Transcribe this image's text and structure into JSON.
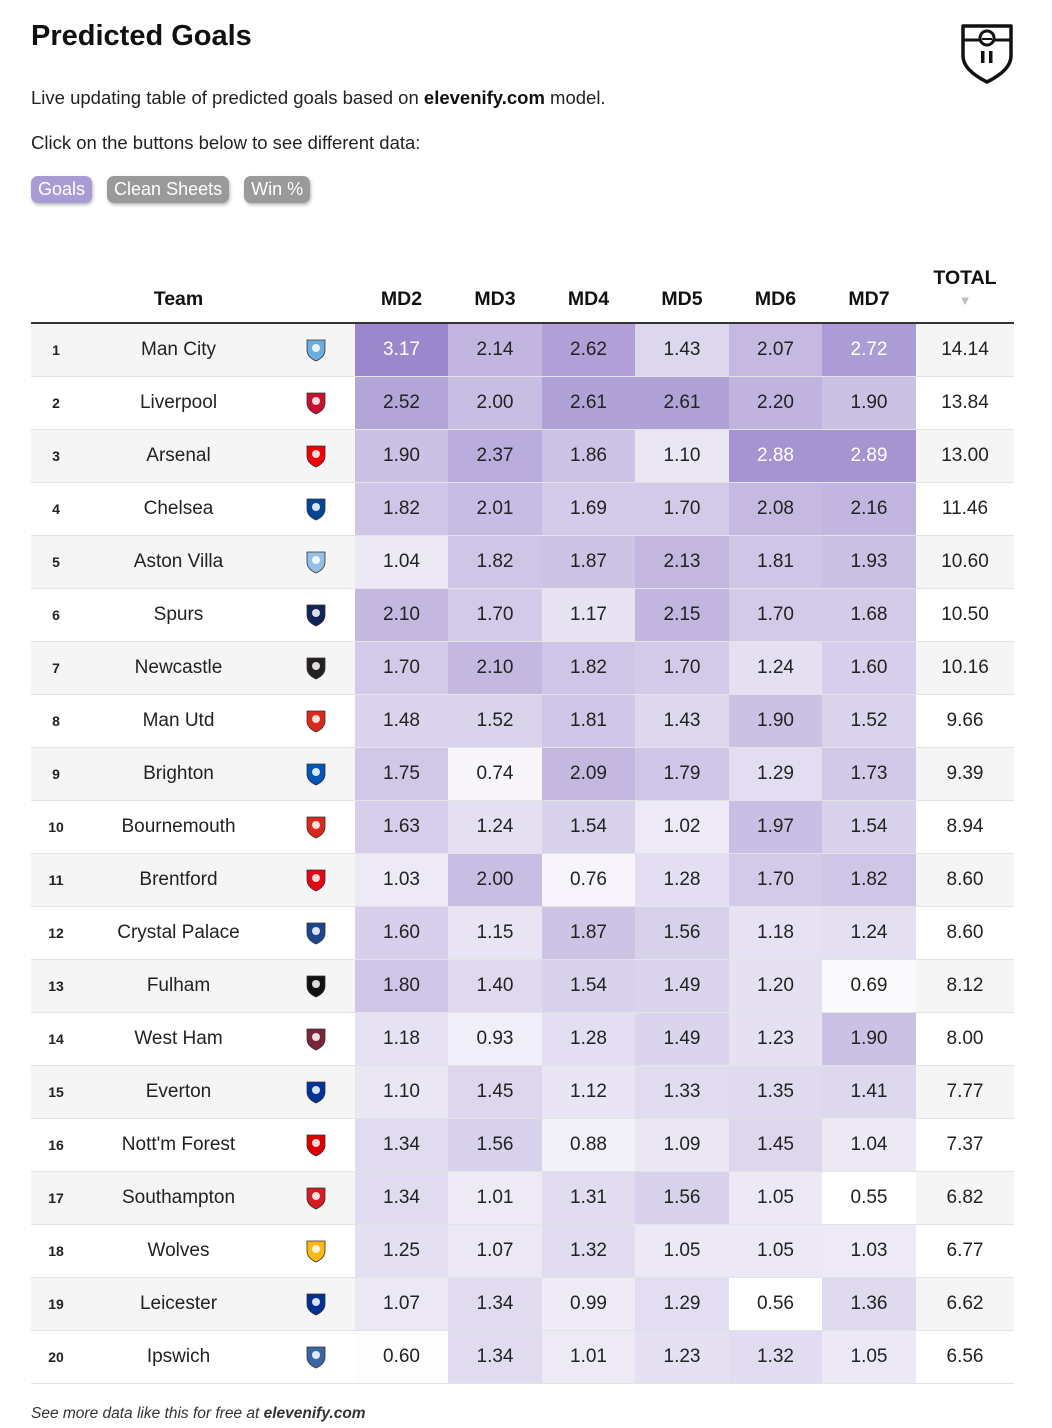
{
  "header": {
    "title": "Predicted Goals",
    "intro_before": "Live updating table of predicted goals based on ",
    "intro_link": "elevenify.com",
    "intro_after": " model.",
    "instruction": "Click on the buttons below to see different data:"
  },
  "buttons": [
    {
      "label": "Goals",
      "active": true
    },
    {
      "label": "Clean Sheets",
      "active": false
    },
    {
      "label": "Win %",
      "active": false
    }
  ],
  "table": {
    "columns": {
      "team": "Team",
      "md": [
        "MD2",
        "MD3",
        "MD4",
        "MD5",
        "MD6",
        "MD7"
      ],
      "total": "TOTAL"
    },
    "sort_indicator": "▼",
    "rows": [
      {
        "rank": "1",
        "team": "Man City",
        "crest": "man-city-crest-icon",
        "color": "#6caddf",
        "values": [
          "3.17",
          "2.14",
          "2.62",
          "1.43",
          "2.07",
          "2.72"
        ],
        "total": "14.14"
      },
      {
        "rank": "2",
        "team": "Liverpool",
        "crest": "liverpool-crest-icon",
        "color": "#c8102e",
        "values": [
          "2.52",
          "2.00",
          "2.61",
          "2.61",
          "2.20",
          "1.90"
        ],
        "total": "13.84"
      },
      {
        "rank": "3",
        "team": "Arsenal",
        "crest": "arsenal-crest-icon",
        "color": "#ef0107",
        "values": [
          "1.90",
          "2.37",
          "1.86",
          "1.10",
          "2.88",
          "2.89"
        ],
        "total": "13.00"
      },
      {
        "rank": "4",
        "team": "Chelsea",
        "crest": "chelsea-crest-icon",
        "color": "#034694",
        "values": [
          "1.82",
          "2.01",
          "1.69",
          "1.70",
          "2.08",
          "2.16"
        ],
        "total": "11.46"
      },
      {
        "rank": "5",
        "team": "Aston Villa",
        "crest": "aston-villa-crest-icon",
        "color": "#95bfe5",
        "values": [
          "1.04",
          "1.82",
          "1.87",
          "2.13",
          "1.81",
          "1.93"
        ],
        "total": "10.60"
      },
      {
        "rank": "6",
        "team": "Spurs",
        "crest": "spurs-crest-icon",
        "color": "#132257",
        "values": [
          "2.10",
          "1.70",
          "1.17",
          "2.15",
          "1.70",
          "1.68"
        ],
        "total": "10.50"
      },
      {
        "rank": "7",
        "team": "Newcastle",
        "crest": "newcastle-crest-icon",
        "color": "#241f20",
        "values": [
          "1.70",
          "2.10",
          "1.82",
          "1.70",
          "1.24",
          "1.60"
        ],
        "total": "10.16"
      },
      {
        "rank": "8",
        "team": "Man Utd",
        "crest": "man-utd-crest-icon",
        "color": "#da291c",
        "values": [
          "1.48",
          "1.52",
          "1.81",
          "1.43",
          "1.90",
          "1.52"
        ],
        "total": "9.66"
      },
      {
        "rank": "9",
        "team": "Brighton",
        "crest": "brighton-crest-icon",
        "color": "#0057b8",
        "values": [
          "1.75",
          "0.74",
          "2.09",
          "1.79",
          "1.29",
          "1.73"
        ],
        "total": "9.39"
      },
      {
        "rank": "10",
        "team": "Bournemouth",
        "crest": "bournemouth-crest-icon",
        "color": "#da291c",
        "values": [
          "1.63",
          "1.24",
          "1.54",
          "1.02",
          "1.97",
          "1.54"
        ],
        "total": "8.94"
      },
      {
        "rank": "11",
        "team": "Brentford",
        "crest": "brentford-crest-icon",
        "color": "#e30613",
        "values": [
          "1.03",
          "2.00",
          "0.76",
          "1.28",
          "1.70",
          "1.82"
        ],
        "total": "8.60"
      },
      {
        "rank": "12",
        "team": "Crystal Palace",
        "crest": "crystal-palace-crest-icon",
        "color": "#1b458f",
        "values": [
          "1.60",
          "1.15",
          "1.87",
          "1.56",
          "1.18",
          "1.24"
        ],
        "total": "8.60"
      },
      {
        "rank": "13",
        "team": "Fulham",
        "crest": "fulham-crest-icon",
        "color": "#111111",
        "values": [
          "1.80",
          "1.40",
          "1.54",
          "1.49",
          "1.20",
          "0.69"
        ],
        "total": "8.12"
      },
      {
        "rank": "14",
        "team": "West Ham",
        "crest": "west-ham-crest-icon",
        "color": "#7a263a",
        "values": [
          "1.18",
          "0.93",
          "1.28",
          "1.49",
          "1.23",
          "1.90"
        ],
        "total": "8.00"
      },
      {
        "rank": "15",
        "team": "Everton",
        "crest": "everton-crest-icon",
        "color": "#003399",
        "values": [
          "1.10",
          "1.45",
          "1.12",
          "1.33",
          "1.35",
          "1.41"
        ],
        "total": "7.77"
      },
      {
        "rank": "16",
        "team": "Nott'm Forest",
        "crest": "nottm-forest-crest-icon",
        "color": "#dd0000",
        "values": [
          "1.34",
          "1.56",
          "0.88",
          "1.09",
          "1.45",
          "1.04"
        ],
        "total": "7.37"
      },
      {
        "rank": "17",
        "team": "Southampton",
        "crest": "southampton-crest-icon",
        "color": "#d71920",
        "values": [
          "1.34",
          "1.01",
          "1.31",
          "1.56",
          "1.05",
          "0.55"
        ],
        "total": "6.82"
      },
      {
        "rank": "18",
        "team": "Wolves",
        "crest": "wolves-crest-icon",
        "color": "#fdb913",
        "values": [
          "1.25",
          "1.07",
          "1.32",
          "1.05",
          "1.05",
          "1.03"
        ],
        "total": "6.77"
      },
      {
        "rank": "19",
        "team": "Leicester",
        "crest": "leicester-crest-icon",
        "color": "#003090",
        "values": [
          "1.07",
          "1.34",
          "0.99",
          "1.29",
          "0.56",
          "1.36"
        ],
        "total": "6.62"
      },
      {
        "rank": "20",
        "team": "Ipswich",
        "crest": "ipswich-crest-icon",
        "color": "#3a64a3",
        "values": [
          "0.60",
          "1.34",
          "1.01",
          "1.23",
          "1.32",
          "1.05"
        ],
        "total": "6.56"
      }
    ]
  },
  "heat_colors": {
    "low": "#ffffff",
    "high": "#9b87cc",
    "min": 0.55,
    "max": 3.17
  },
  "footer": {
    "text_before": "See more data like this for free at ",
    "link": "elevenify.com"
  }
}
